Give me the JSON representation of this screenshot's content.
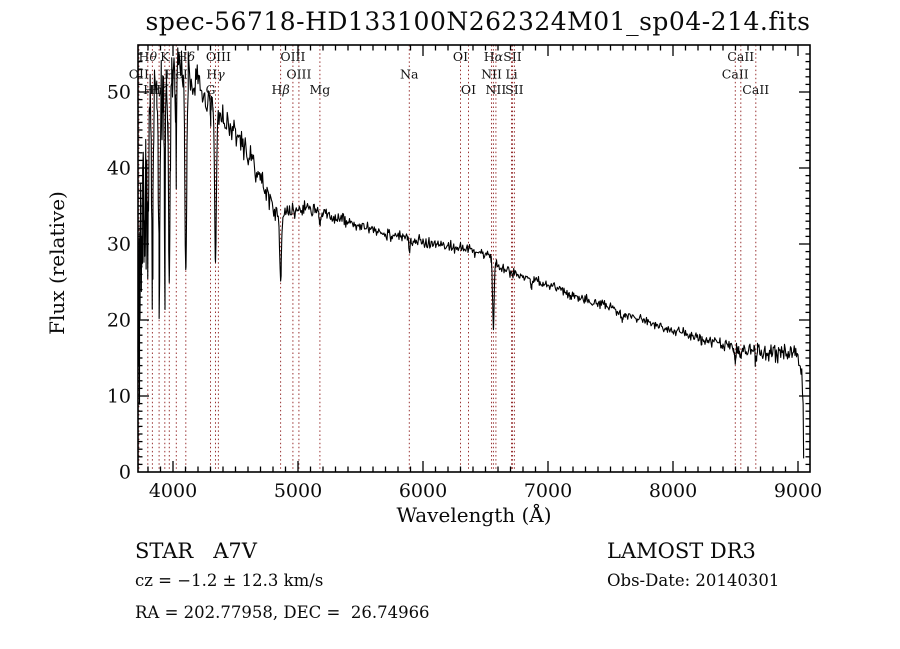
{
  "header": {
    "title": "spec-56718-HD133100N262324M01_sp04-214.fits"
  },
  "annotations": {
    "class_label": "STAR   A7V",
    "survey": "LAMOST DR3",
    "cz": "cz = −1.2 ± 12.3 km/s",
    "obs_date": "Obs-Date: 20140301",
    "ra_dec": "RA = 202.77958, DEC =  26.74966"
  },
  "chart_data": {
    "type": "line",
    "title": "spec-56718-HD133100N262324M01_sp04-214.fits",
    "xlabel": "Wavelength (Å)",
    "ylabel": "Flux (relative)",
    "xlim": [
      3720,
      9096
    ],
    "ylim": [
      0,
      55.9
    ],
    "x_ticks": [
      4000,
      5000,
      6000,
      7000,
      8000,
      9000
    ],
    "y_ticks": [
      0,
      10,
      20,
      30,
      40,
      50
    ],
    "x_minor_step": 100,
    "y_minor_step": 1,
    "grid": false,
    "legend": null,
    "trace_color": "#000000",
    "marker_color": "#993333",
    "label_rows_y": [
      57,
      74.5,
      90
    ],
    "continuum_points": [
      [
        3720,
        24
      ],
      [
        3735,
        34
      ],
      [
        3760,
        43
      ],
      [
        3790,
        47
      ],
      [
        3830,
        49.5
      ],
      [
        3870,
        51
      ],
      [
        3910,
        52
      ],
      [
        3950,
        53
      ],
      [
        3990,
        54
      ],
      [
        4030,
        54.3
      ],
      [
        4070,
        54
      ],
      [
        4110,
        53.2
      ],
      [
        4150,
        52
      ],
      [
        4200,
        50.5
      ],
      [
        4250,
        49.4
      ],
      [
        4300,
        48.4
      ],
      [
        4350,
        47.6
      ],
      [
        4400,
        46.6
      ],
      [
        4450,
        45.6
      ],
      [
        4500,
        44.5
      ],
      [
        4550,
        43.2
      ],
      [
        4600,
        41.8
      ],
      [
        4650,
        40.2
      ],
      [
        4700,
        38.6
      ],
      [
        4750,
        36.8
      ],
      [
        4800,
        35
      ],
      [
        4840,
        33.3
      ],
      [
        4880,
        33.5
      ],
      [
        4920,
        34
      ],
      [
        4970,
        34.3
      ],
      [
        5020,
        34.6
      ],
      [
        5070,
        34.9
      ],
      [
        5120,
        34.6
      ],
      [
        5180,
        34.1
      ],
      [
        5250,
        33.7
      ],
      [
        5350,
        33.2
      ],
      [
        5450,
        32.6
      ],
      [
        5550,
        32
      ],
      [
        5650,
        31.6
      ],
      [
        5750,
        31.2
      ],
      [
        5850,
        30.9
      ],
      [
        5950,
        30.5
      ],
      [
        6050,
        30.2
      ],
      [
        6150,
        29.9
      ],
      [
        6250,
        29.6
      ],
      [
        6350,
        29.3
      ],
      [
        6450,
        28.9
      ],
      [
        6530,
        28.6
      ],
      [
        6600,
        27.3
      ],
      [
        6700,
        26.3
      ],
      [
        6800,
        25.8
      ],
      [
        6900,
        25.2
      ],
      [
        7000,
        24.6
      ],
      [
        7100,
        24
      ],
      [
        7200,
        23.4
      ],
      [
        7300,
        22.8
      ],
      [
        7400,
        22.2
      ],
      [
        7500,
        21.6
      ],
      [
        7600,
        21
      ],
      [
        7700,
        20.4
      ],
      [
        7800,
        19.8
      ],
      [
        7900,
        19.2
      ],
      [
        8000,
        18.7
      ],
      [
        8100,
        18.2
      ],
      [
        8200,
        17.7
      ],
      [
        8300,
        17.2
      ],
      [
        8400,
        16.7
      ],
      [
        8500,
        16.3
      ],
      [
        8600,
        16
      ],
      [
        8700,
        15.8
      ],
      [
        8800,
        15.7
      ],
      [
        8900,
        15.9
      ],
      [
        8960,
        16.2
      ],
      [
        9000,
        15.3
      ],
      [
        9030,
        13.5
      ],
      [
        9040,
        10
      ]
    ],
    "noise_amplitude": [
      [
        3720,
        7
      ],
      [
        3800,
        6
      ],
      [
        3900,
        5
      ],
      [
        4000,
        3.5
      ],
      [
        4100,
        3
      ],
      [
        4200,
        2.4
      ],
      [
        4400,
        1.8
      ],
      [
        4700,
        1.4
      ],
      [
        4900,
        1.1
      ],
      [
        5200,
        0.9
      ],
      [
        5600,
        0.8
      ],
      [
        6000,
        0.8
      ],
      [
        6500,
        0.7
      ],
      [
        7000,
        0.7
      ],
      [
        7600,
        0.6
      ],
      [
        8000,
        0.65
      ],
      [
        8400,
        0.8
      ],
      [
        8700,
        1.0
      ],
      [
        8900,
        1.3
      ],
      [
        9040,
        1.5
      ]
    ],
    "spectral_lines": [
      {
        "wavelength": 3712,
        "floor": 27,
        "width": 6,
        "label": null,
        "row": null
      },
      {
        "wavelength": 3722,
        "floor": 26,
        "width": 6,
        "label": null,
        "row": null
      },
      {
        "wavelength": 3734,
        "floor": 26,
        "width": 7,
        "label": null,
        "row": null
      },
      {
        "wavelength": 3750,
        "floor": 26.5,
        "width": 7,
        "label": null,
        "row": null
      },
      {
        "wavelength": 3771,
        "floor": 27,
        "width": 7,
        "label": null,
        "row": null
      },
      {
        "wavelength": 3727,
        "floor": 30,
        "width": 5,
        "label": "OII",
        "row": 2
      },
      {
        "wavelength": 3798,
        "floor": 26.5,
        "width": 8,
        "label": "Hθ",
        "row": 1
      },
      {
        "wavelength": 3835,
        "floor": 25.5,
        "width": 9,
        "label": "Hη",
        "row": 3
      },
      {
        "wavelength": 3889,
        "floor": 25.5,
        "width": 9,
        "label": "Hζ",
        "row": 3
      },
      {
        "wavelength": 3934,
        "floor": 31,
        "width": 6,
        "label": "K",
        "row": 1
      },
      {
        "wavelength": 3970,
        "floor": 25,
        "width": 10,
        "label": "H",
        "row": 2
      },
      {
        "wavelength": 4026,
        "floor": 42,
        "width": 6,
        "label": "HeI",
        "row": 2
      },
      {
        "wavelength": 4102,
        "floor": 25.5,
        "width": 10,
        "label": "Hδ",
        "row": 1
      },
      {
        "wavelength": 4300,
        "floor": 46,
        "width": 5,
        "label": "G",
        "row": 3
      },
      {
        "wavelength": 4340,
        "floor": 27.5,
        "width": 10,
        "label": "Hγ",
        "row": 2
      },
      {
        "wavelength": 4363,
        "floor": null,
        "width": 0,
        "label": "OIII",
        "row": 1
      },
      {
        "wavelength": 4861,
        "floor": 25.6,
        "width": 9,
        "label": "Hβ",
        "row": 3
      },
      {
        "wavelength": 4959,
        "floor": null,
        "width": 0,
        "label": "OIII",
        "row": 1
      },
      {
        "wavelength": 5007,
        "floor": null,
        "width": 0,
        "label": "OIII",
        "row": 2
      },
      {
        "wavelength": 5175,
        "floor": 32.3,
        "width": 9,
        "label": "Mg",
        "row": 3
      },
      {
        "wavelength": 5890,
        "floor": 29,
        "width": 8,
        "label": "Na",
        "row": 2
      },
      {
        "wavelength": 6300,
        "floor": null,
        "width": 0,
        "label": "OI",
        "row": 1
      },
      {
        "wavelength": 6364,
        "floor": null,
        "width": 0,
        "label": "OI",
        "row": 3
      },
      {
        "wavelength": 6548,
        "floor": null,
        "width": 0,
        "label": "NII",
        "row": 2
      },
      {
        "wavelength": 6563,
        "floor": 19,
        "width": 9,
        "label": "Hα",
        "row": 1
      },
      {
        "wavelength": 6583,
        "floor": null,
        "width": 0,
        "label": "NII",
        "row": 3
      },
      {
        "wavelength": 6708,
        "floor": null,
        "width": 0,
        "label": "Li",
        "row": 2
      },
      {
        "wavelength": 6716,
        "floor": null,
        "width": 0,
        "label": "SII",
        "row": 1
      },
      {
        "wavelength": 6731,
        "floor": null,
        "width": 0,
        "label": "SII",
        "row": 3
      },
      {
        "wavelength": 6867,
        "floor": 24.2,
        "width": 9,
        "label": null,
        "row": null
      },
      {
        "wavelength": 7180,
        "floor": 22.8,
        "width": 8,
        "label": null,
        "row": null
      },
      {
        "wavelength": 7594,
        "floor": 19.8,
        "width": 12,
        "label": null,
        "row": null
      },
      {
        "wavelength": 8227,
        "floor": 16.9,
        "width": 8,
        "label": null,
        "row": null
      },
      {
        "wavelength": 8498,
        "floor": 14.8,
        "width": 7,
        "label": "CaII",
        "row": 2
      },
      {
        "wavelength": 8542,
        "floor": 14.6,
        "width": 7,
        "label": "CaII",
        "row": 1
      },
      {
        "wavelength": 8662,
        "floor": 14.3,
        "width": 7,
        "label": "CaII",
        "row": 3
      }
    ],
    "edge_drop": {
      "wavelength": 9045,
      "flux": 1.8
    }
  }
}
